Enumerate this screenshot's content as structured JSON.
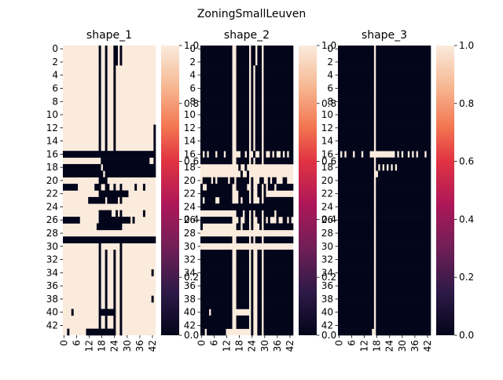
{
  "figure": {
    "suptitle": "ZoningSmallLeuven"
  },
  "chart_data": [
    {
      "type": "heatmap",
      "title": "shape_1",
      "n_rows": 44,
      "n_cols": 44,
      "y_ticks": [
        "0",
        "2",
        "4",
        "6",
        "8",
        "10",
        "12",
        "14",
        "16",
        "18",
        "20",
        "22",
        "24",
        "26",
        "28",
        "30",
        "32",
        "34",
        "36",
        "38",
        "40",
        "42"
      ],
      "x_ticks": [
        "0",
        "6",
        "12",
        "18",
        "24",
        "30",
        "36",
        "42"
      ],
      "colorbar": {
        "range": [
          0.0,
          1.0
        ],
        "ticks": [
          "0.0",
          "0.2",
          "0.4",
          "0.6",
          "0.8",
          "1.0"
        ]
      },
      "rows": [
        "11111111111111111011011100101111111111111111",
        "11111111111111111011011100101111111111111111",
        "11111111111111111011011100101111111111111111",
        "11111111111111111011011101111111111111111111",
        "11111111111111111011011101111111111111111111",
        "11111111111111111011011101111111111111111111",
        "11111111111111111011011101111111111111111111",
        "11111111111111111011011101111111111111111111",
        "11111111111111111011011101111111111111111111",
        "11111111111111111011011101111111111111111111",
        "11111111111111111011011101111111111111111111",
        "11111111111111111011011101111111111111111111",
        "11111111111111111011011101111111111111111110",
        "11111111111111111011011101111111111111111110",
        "11111111111111111011011101111111111111111110",
        "11111111111111111011011101111111111111111110",
        "00000000000000000000000000000000000000000000",
        "11111111111111111100000000000000000000000110",
        "00000000000000000010000000000000000000000000",
        "00000000000000000001000000000000000000000000",
        "11111111111111111000011111111111111111111111",
        "00000001111111100011001101101111110111011111",
        "11111111111111111000000000000001111111111111",
        "11111111111100000000100000101111111111111111",
        "11111111111111111111111111111111111111111111",
        "11111111111111111000000110101111111111011111",
        "00000000111111111000000000000000101111111111",
        "11111111111111110000000000001111111111111111",
        "11111111111111111111111111111111111111111111",
        "00000000000000000000000000000000000000000000",
        "11111111111111111011111111101111111111111111",
        "11111111111111111011011101101111111111111111",
        "11111111111111111011011101101111111111111111",
        "11111111111111111011011101101111111111111111",
        "11111111111111111011011101101111111111111101",
        "11111111111111111011011101101111111111111111",
        "11111111111111111011011101101111111111111111",
        "11111111111111111011011101101111111111111111",
        "11111111111111111011011101101111111111111101",
        "11111111111111111011011101101111111111111111",
        "11110111111111111000000001101111111111111111",
        "11111111111111111011011101101111111111111111",
        "11111111111111111011011101101111111111111111",
        "11011111111000000000000001101111111111111111"
      ]
    },
    {
      "type": "heatmap",
      "title": "shape_2",
      "n_rows": 44,
      "n_cols": 44,
      "y_ticks": [
        "0",
        "2",
        "4",
        "6",
        "8",
        "10",
        "12",
        "14",
        "16",
        "18",
        "20",
        "22",
        "24",
        "26",
        "28",
        "30",
        "32",
        "34",
        "36",
        "38",
        "40",
        "42"
      ],
      "x_ticks": [
        "0",
        "6",
        "12",
        "18",
        "24",
        "30",
        "36",
        "42"
      ],
      "colorbar": {
        "range": [
          0.0,
          1.0
        ],
        "ticks": [
          "0.0",
          "0.2",
          "0.4",
          "0.6",
          "0.8",
          "1.0"
        ]
      },
      "rows": [
        "00000000000000011000000100100100000000000000",
        "00000000000000011000000100100100000000000000",
        "00000000000000011000000100100100000000000000",
        "00000000000000011000000101000100000000000000",
        "00000000000000011000000101000100000000000000",
        "00000000000000011000000101000100000000000000",
        "00000000000000011000000101000100000000000000",
        "00000000000000011000000101000100000000000000",
        "00000000000000011000000101000100000000000000",
        "00000000000000011000000101000100000000000000",
        "00000000000000011000000101000100000000000000",
        "00000000000000011000000101000100000000000000",
        "00000000000000011000000101000100000000000000",
        "00000000000000011000000101000100000000000000",
        "00000000000000011000000101000100000000000000",
        "00000000000000011000000101000100000000000000",
        "01010001000100011110010110110101101011010100",
        "00000000000000011000000101000100000000000000",
        "11111111111111111101101111111111111111111111",
        "11111111111111111110110111111111111111111111",
        "10000101000001001000000101110011010011100111",
        "01100000000000011000001101100101000100000000",
        "00000000000000011100000101100101111111111111",
        "01000001100000011101000101110100000000000000",
        "00000000000000000000000000000000000000000000",
        "11111111111111111000100101000100000100000000",
        "00000000000000011101100101100101011101100101",
        "01111111111111111001000101110100000000000000",
        "11111111111111111111111111111111111111111111",
        "00000000000000011000000101000100000000000000",
        "11111111111111111111111111111111111111111111",
        "00000000000000011000000101100100000000000000",
        "00000000000000011000000101100100000000000000",
        "00000000000000011000000101100100000000000000",
        "00000000000000011000000101100100000000000000",
        "00000000000000011000000101100100000000000000",
        "00000000000000011000000101100100000000000000",
        "00000000000000011000000101100100000000000000",
        "00000000000000011000000101100100000000000000",
        "00000000000000011000000101100100000000000000",
        "00001000000000011111111101100100000000000000",
        "00000000000000011000000101100100000000000000",
        "00000000000000011000000101100100000000000000",
        "00100000000011111111111101100100000000000000"
      ]
    },
    {
      "type": "heatmap",
      "title": "shape_3",
      "n_rows": 44,
      "n_cols": 44,
      "y_ticks": [
        "0",
        "2",
        "4",
        "6",
        "8",
        "10",
        "12",
        "14",
        "16",
        "18",
        "20",
        "22",
        "24",
        "26",
        "28",
        "30",
        "32",
        "34",
        "36",
        "38",
        "40",
        "42"
      ],
      "x_ticks": [
        "0",
        "6",
        "12",
        "18",
        "24",
        "30",
        "36",
        "42"
      ],
      "colorbar": {
        "range": [
          0.0,
          1.0
        ],
        "ticks": [
          "0.0",
          "0.2",
          "0.4",
          "0.6",
          "0.8",
          "1.0"
        ]
      },
      "rows": [
        "00000000000000000100000000000000000000000000",
        "00000000000000000100000000000000000000000000",
        "00000000000000000100000000000000000000000000",
        "00000000000000000100000000000000000000000000",
        "00000000000000000100000000000000000000000000",
        "00000000000000000100000000000000000000000000",
        "00000000000000000100000000000000000000000000",
        "00000000000000000100000000000000000000000000",
        "00000000000000000100000000000000000000000000",
        "00000000000000000100000000000000000000000000",
        "00000000000000000100000000000000000000000000",
        "00000000000000000100000000000000000000000000",
        "00000000000000000100000000000000000000000000",
        "00000000000000000100000000000000000000000000",
        "00000000000000000100000000000000000000000000",
        "00000000000000000100000000000000000000000000",
        "01010001000100011111111111101010010101000100",
        "00000000000000000100000000000000000000000000",
        "00000000000000000101010101010000000000000000",
        "00000000000000000110000000000000000000000000",
        "00000000000000000100000000000000000000000000",
        "00000000000000000100000000000000000000000000",
        "00000000000000000100000000000000000000000000",
        "00000000000000000100000000000000000000000000",
        "00000000000000000100000000000000000000000000",
        "00000000000000000100000000000000000000000000",
        "00000000000000000100000000000000000000000000",
        "00000000000000000100000000000000000000000000",
        "00000000000000000100000000000000000000000000",
        "00000000000000000100000000000000000000000000",
        "00000000000000000100000000000000000000000000",
        "00000000000000000100000000000000000000000000",
        "00000000000000000100000000000000000000000000",
        "00000000000000000100000000000000000000000000",
        "00000000000000000100000000000000000000000000",
        "00000000000000000100000000000000000000000000",
        "00000000000000000100000000000000000000000000",
        "00000000000000000100000000000000000000000000",
        "00000000000000000100000000000000000000000000",
        "00000000000000000100000000000000000000000000",
        "00000000000000000100000000000000000000000000",
        "00000000000000000100000000000000000000000000",
        "00000000000000000100000000000000000000000000",
        "00000000000000001100000000000000000000000000"
      ]
    }
  ]
}
